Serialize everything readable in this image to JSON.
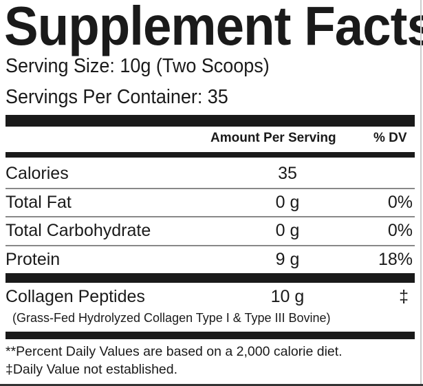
{
  "title": "Supplement Facts",
  "serving_size": "Serving Size: 10g (Two Scoops)",
  "servings_per_container": "Servings Per Container: 35",
  "header": {
    "amount": "Amount Per Serving",
    "dv": "% DV"
  },
  "rows": [
    {
      "label": "Calories",
      "amount": "35",
      "dv": ""
    },
    {
      "label": "Total Fat",
      "amount": "0 g",
      "dv": "0%"
    },
    {
      "label": "Total Carbohydrate",
      "amount": "0 g",
      "dv": "0%"
    },
    {
      "label": "Protein",
      "amount": "9 g",
      "dv": "18%"
    },
    {
      "label": "Collagen Peptides",
      "amount": "10 g",
      "dv": "‡"
    }
  ],
  "collagen_note": "(Grass-Fed Hydrolyzed Collagen Type I & Type III Bovine)",
  "footnotes": [
    "**Percent Daily Values are based on a 2,000 calorie diet.",
    "‡Daily Value not established."
  ]
}
